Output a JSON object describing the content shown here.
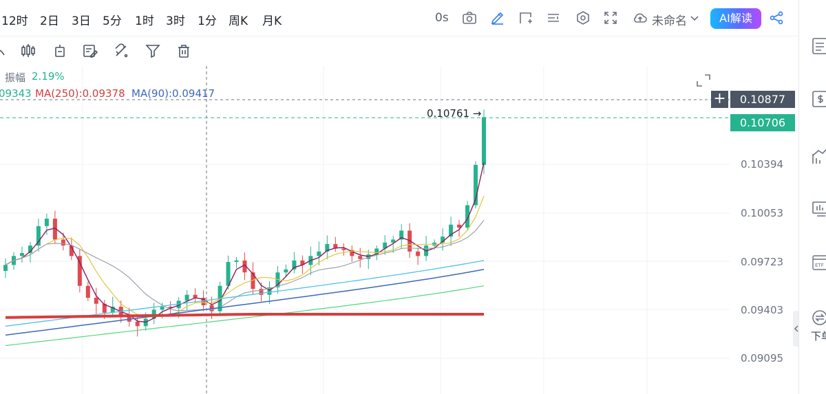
{
  "timeframes": [
    "12时",
    "2日",
    "3日",
    "5分",
    "1时",
    "3时",
    "1分",
    "周K",
    "月K"
  ],
  "toolbar": {
    "countdown": "0s",
    "layout_name": "未命名",
    "ai_button": "AI解读"
  },
  "legend": {
    "amplitude_label": "振幅",
    "amplitude_value": "2.19%",
    "ma_first_partial": "09343",
    "ma250": "MA(250):0.09378",
    "ma90": "MA(90):0.09417"
  },
  "price_axis": [
    "0.10394",
    "0.10053",
    "0.09723",
    "0.09403",
    "0.09095"
  ],
  "crosshair_price": "0.10877",
  "current_price": "0.10706",
  "high_marker": "0.10761 →",
  "right_panel": {
    "download_label": "下单"
  },
  "colors": {
    "up": "#26b38f",
    "down": "#e04a4f",
    "ma250": "#d63d3d",
    "ma90": "#3b6ab8",
    "current_tag": "#26b38f",
    "crosshair_tag": "#4b5563"
  },
  "chart_data": {
    "type": "candlestick",
    "ohlc_close_sequence": [
      0.0972,
      0.0978,
      0.098,
      0.0985,
      0.0998,
      0.1003,
      0.0989,
      0.0985,
      0.0978,
      0.0958,
      0.095,
      0.0946,
      0.094,
      0.0944,
      0.0938,
      0.0934,
      0.0931,
      0.0936,
      0.0942,
      0.0944,
      0.0943,
      0.0948,
      0.0952,
      0.095,
      0.0945,
      0.0941,
      0.0958,
      0.0974,
      0.0975,
      0.0967,
      0.0956,
      0.0952,
      0.0957,
      0.0967,
      0.0969,
      0.0975,
      0.0972,
      0.0978,
      0.0981,
      0.0986,
      0.0983,
      0.0982,
      0.0978,
      0.0976,
      0.0979,
      0.0983,
      0.0987,
      0.0989,
      0.0995,
      0.0981,
      0.0978,
      0.0985,
      0.0987,
      0.0991,
      0.0999,
      0.0997,
      0.1012,
      0.1039,
      0.1071
    ],
    "current": 0.10706,
    "high_label": 0.10761
  }
}
